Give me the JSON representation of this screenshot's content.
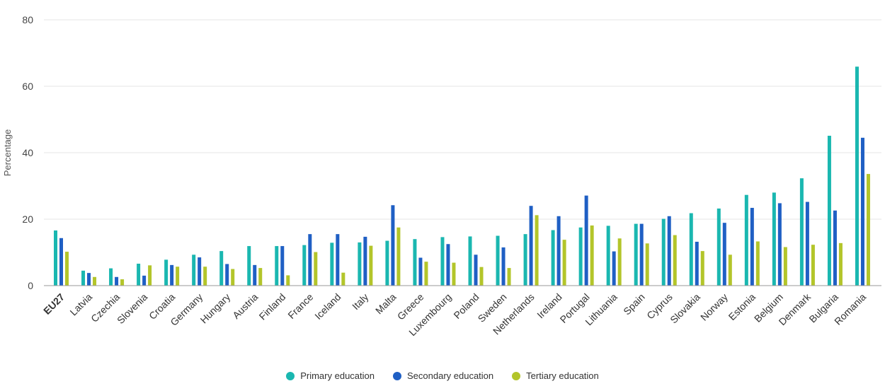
{
  "chart_data": {
    "type": "bar",
    "ylabel": "Percentage",
    "ylim": [
      0,
      80
    ],
    "yticks": [
      0,
      20,
      40,
      60,
      80
    ],
    "grid": true,
    "legend_position": "bottom",
    "categories": [
      "EU27",
      "Latvia",
      "Czechia",
      "Slovenia",
      "Croatia",
      "Germany",
      "Hungary",
      "Austria",
      "Finland",
      "France",
      "Iceland",
      "Italy",
      "Malta",
      "Greece",
      "Luxembourg",
      "Poland",
      "Sweden",
      "Netherlands",
      "Ireland",
      "Portugal",
      "Lithuania",
      "Spain",
      "Cyprus",
      "Slovakia",
      "Norway",
      "Estonia",
      "Belgium",
      "Denmark",
      "Bulgaria",
      "Romania"
    ],
    "highlight_category": "EU27",
    "series": [
      {
        "name": "Primary education",
        "color": "#1ab7b0",
        "values": [
          16.6,
          4.5,
          5.2,
          6.6,
          7.8,
          9.3,
          10.4,
          11.9,
          11.9,
          12.2,
          12.9,
          13.0,
          13.5,
          14.0,
          14.6,
          14.8,
          15.0,
          15.5,
          16.7,
          17.5,
          18.0,
          18.6,
          20.1,
          21.8,
          23.2,
          27.3,
          28.0,
          32.3,
          45.1,
          65.9
        ]
      },
      {
        "name": "Secondary education",
        "color": "#1f5fc4",
        "values": [
          14.3,
          3.8,
          2.6,
          3.0,
          6.2,
          8.5,
          6.5,
          6.2,
          11.9,
          15.5,
          15.5,
          14.7,
          24.2,
          8.4,
          12.5,
          9.3,
          11.5,
          24.0,
          20.9,
          27.1,
          10.3,
          18.6,
          20.9,
          13.2,
          18.9,
          23.4,
          24.8,
          25.2,
          22.6,
          44.5
        ]
      },
      {
        "name": "Tertiary education",
        "color": "#b3c52a",
        "values": [
          10.2,
          2.6,
          1.9,
          6.1,
          5.7,
          5.7,
          5.0,
          5.3,
          3.1,
          10.1,
          3.9,
          12.0,
          17.5,
          7.2,
          6.9,
          5.6,
          5.3,
          21.2,
          13.8,
          18.1,
          14.2,
          12.7,
          15.2,
          10.4,
          9.3,
          13.3,
          11.6,
          12.3,
          12.8,
          33.6
        ]
      }
    ]
  }
}
